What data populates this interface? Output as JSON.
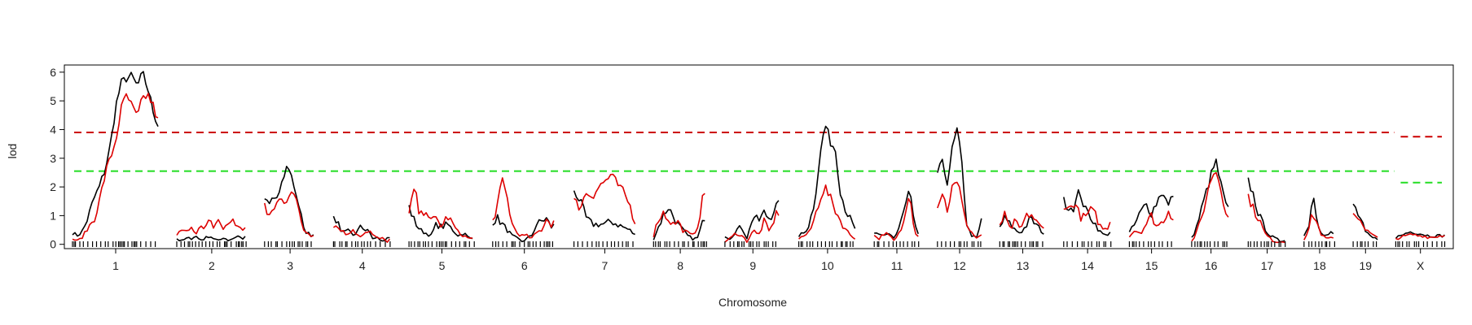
{
  "chart_data": {
    "type": "line",
    "title": "",
    "xlabel": "Chromosome",
    "ylabel": "lod",
    "ylim": [
      -0.15,
      6.25
    ],
    "yticks": [
      0,
      1,
      2,
      3,
      4,
      5,
      6
    ],
    "chromosomes": [
      "1",
      "2",
      "3",
      "4",
      "5",
      "6",
      "7",
      "8",
      "9",
      "10",
      "11",
      "12",
      "13",
      "14",
      "15",
      "16",
      "17",
      "18",
      "19",
      "X"
    ],
    "chrom_lengths": [
      1.05,
      0.85,
      0.62,
      0.7,
      0.8,
      0.77,
      0.75,
      0.65,
      0.68,
      0.7,
      0.55,
      0.54,
      0.56,
      0.58,
      0.54,
      0.47,
      0.46,
      0.38,
      0.3,
      0.6
    ],
    "colors": {
      "series1": "#000000",
      "series2": "#dd0000",
      "threshold_high": "#cc0000",
      "threshold_low": "#22dd22"
    },
    "thresholds": {
      "autosome_high": 3.9,
      "autosome_low": 2.55,
      "x_high": 3.75,
      "x_low": 2.15
    },
    "series": [
      {
        "values": [
          [
            0.4,
            0.3,
            0.5,
            1.0,
            1.6,
            2.0,
            2.6,
            3.4,
            4.8,
            5.6,
            5.8,
            5.85,
            5.5,
            5.95,
            5.4,
            4.6,
            4.1
          ],
          [
            0.2,
            0.1,
            0.2,
            0.2,
            0.3,
            0.15,
            0.2,
            0.3,
            0.2,
            0.1,
            0.25,
            0.15,
            0.2,
            0.3,
            0.2,
            0.25
          ],
          [
            1.6,
            1.3,
            1.6,
            1.6,
            1.8,
            2.4,
            2.8,
            2.3,
            1.8,
            1.2,
            0.5,
            0.4,
            0.3,
            0.4
          ],
          [
            1.1,
            0.7,
            0.4,
            0.6,
            0.4,
            0.3,
            0.6,
            0.4,
            0.5,
            0.2,
            0.3,
            0.1,
            0.2,
            0.25
          ],
          [
            1.3,
            0.8,
            0.5,
            0.4,
            0.3,
            0.7,
            0.6,
            0.7,
            0.5,
            0.3,
            0.4,
            0.2,
            0.2
          ],
          [
            0.8,
            0.9,
            0.7,
            0.5,
            0.3,
            0.2,
            0.1,
            0.2,
            0.3,
            0.7,
            0.8,
            0.9,
            0.6,
            0.7
          ],
          [
            1.9,
            1.5,
            0.9,
            0.7,
            0.7,
            0.7,
            0.8,
            0.7,
            0.6,
            0.5,
            0.3
          ],
          [
            0.2,
            0.6,
            1.0,
            1.3,
            1.0,
            0.7,
            0.5,
            0.3,
            0.2,
            0.2,
            0.7,
            1.2
          ],
          [
            0.3,
            0.2,
            0.5,
            0.6,
            0.2,
            1.0,
            0.8,
            1.1,
            0.9,
            1.3,
            1.4
          ],
          [
            0.3,
            0.4,
            0.7,
            1.5,
            3.0,
            4.2,
            3.6,
            3.3,
            1.8,
            1.2,
            0.8,
            0.4
          ],
          [
            0.4,
            0.3,
            0.3,
            0.4,
            0.2,
            0.6,
            1.2,
            1.9,
            0.6,
            0.3
          ],
          [
            2.5,
            2.8,
            2.2,
            3.3,
            4.0,
            2.7,
            0.6,
            0.3,
            0.2,
            0.9
          ],
          [
            0.6,
            0.9,
            0.7,
            0.5,
            0.4,
            0.6,
            0.9,
            0.7,
            0.5,
            0.3
          ],
          [
            1.5,
            1.3,
            1.3,
            1.9,
            1.2,
            1.0,
            0.7,
            0.4,
            0.3,
            0.5
          ],
          [
            0.4,
            0.7,
            1.1,
            1.4,
            1.1,
            1.5,
            1.9,
            1.3,
            1.8
          ],
          [
            0.2,
            0.6,
            1.2,
            1.8,
            2.4,
            2.9,
            2.1,
            1.4,
            1.0
          ],
          [
            2.2,
            1.7,
            1.0,
            0.6,
            0.3,
            0.2,
            0.1,
            0.2
          ],
          [
            0.3,
            0.6,
            1.8,
            0.8,
            0.4,
            0.3,
            0.4,
            0.3
          ],
          [
            1.4,
            1.1,
            0.8,
            0.4,
            0.3,
            0.2,
            0.2
          ],
          [
            0.25,
            0.3,
            0.4,
            0.45,
            0.4,
            0.35,
            0.3,
            0.3,
            0.3,
            0.3
          ]
        ]
      },
      {
        "values": [
          [
            0.2,
            0.1,
            0.3,
            0.6,
            0.9,
            1.5,
            2.4,
            3.0,
            3.6,
            4.7,
            5.2,
            4.8,
            4.4,
            5.1,
            5.2,
            4.8,
            4.2
          ],
          [
            0.3,
            0.5,
            0.4,
            0.7,
            0.4,
            0.6,
            0.5,
            0.8,
            0.6,
            0.9,
            0.5,
            0.7,
            0.9,
            0.6,
            0.5,
            0.7
          ],
          [
            1.4,
            0.8,
            1.2,
            1.4,
            1.6,
            1.4,
            1.7,
            2.0,
            1.6,
            0.9,
            0.5,
            0.4,
            0.3,
            0.4
          ],
          [
            0.7,
            0.6,
            0.5,
            0.3,
            0.5,
            0.4,
            0.3,
            0.4,
            0.5,
            0.3,
            0.2,
            0.2,
            0.1,
            0.2
          ],
          [
            1.0,
            2.0,
            0.9,
            1.3,
            0.8,
            0.9,
            0.6,
            1.0,
            0.7,
            0.4,
            0.3,
            0.2,
            0.2
          ],
          [
            0.8,
            1.4,
            2.2,
            1.6,
            0.7,
            0.4,
            0.3,
            0.3,
            0.2,
            0.4,
            0.5,
            0.9,
            0.7,
            0.9
          ],
          [
            1.5,
            1.3,
            1.8,
            1.7,
            2.0,
            2.2,
            2.4,
            2.1,
            1.8,
            1.4,
            0.7
          ],
          [
            0.3,
            0.9,
            1.1,
            0.9,
            0.7,
            0.8,
            0.5,
            0.4,
            0.3,
            0.6,
            1.5,
            2.0
          ],
          [
            0.1,
            0.2,
            0.4,
            0.3,
            0.1,
            0.5,
            0.3,
            0.8,
            0.4,
            1.0,
            1.2
          ],
          [
            0.2,
            0.3,
            0.4,
            0.9,
            1.6,
            2.0,
            1.6,
            1.2,
            0.8,
            0.5,
            0.3,
            0.2
          ],
          [
            0.3,
            0.2,
            0.4,
            0.3,
            0.1,
            0.4,
            0.8,
            2.0,
            0.5,
            0.2
          ],
          [
            1.4,
            1.8,
            1.2,
            2.0,
            2.1,
            1.6,
            0.6,
            0.4,
            0.2,
            0.3
          ],
          [
            0.7,
            1.0,
            0.5,
            0.8,
            0.5,
            0.9,
            1.1,
            0.8,
            0.6,
            0.5
          ],
          [
            1.4,
            1.2,
            1.5,
            1.0,
            0.9,
            1.2,
            1.0,
            0.6,
            0.5,
            0.9
          ],
          [
            0.3,
            0.5,
            0.4,
            0.7,
            1.0,
            0.6,
            0.8,
            1.2,
            0.9
          ],
          [
            0.1,
            0.4,
            0.9,
            1.6,
            2.3,
            2.6,
            2.0,
            1.2,
            0.7
          ],
          [
            1.7,
            1.2,
            0.9,
            0.4,
            0.2,
            0.1,
            0.1,
            0.1
          ],
          [
            0.2,
            0.5,
            1.1,
            0.7,
            0.3,
            0.2,
            0.2,
            0.2
          ],
          [
            1.2,
            0.9,
            0.9,
            0.5,
            0.4,
            0.3,
            0.2
          ],
          [
            0.2,
            0.25,
            0.3,
            0.35,
            0.3,
            0.3,
            0.25,
            0.25,
            0.3,
            0.3
          ]
        ]
      }
    ]
  }
}
